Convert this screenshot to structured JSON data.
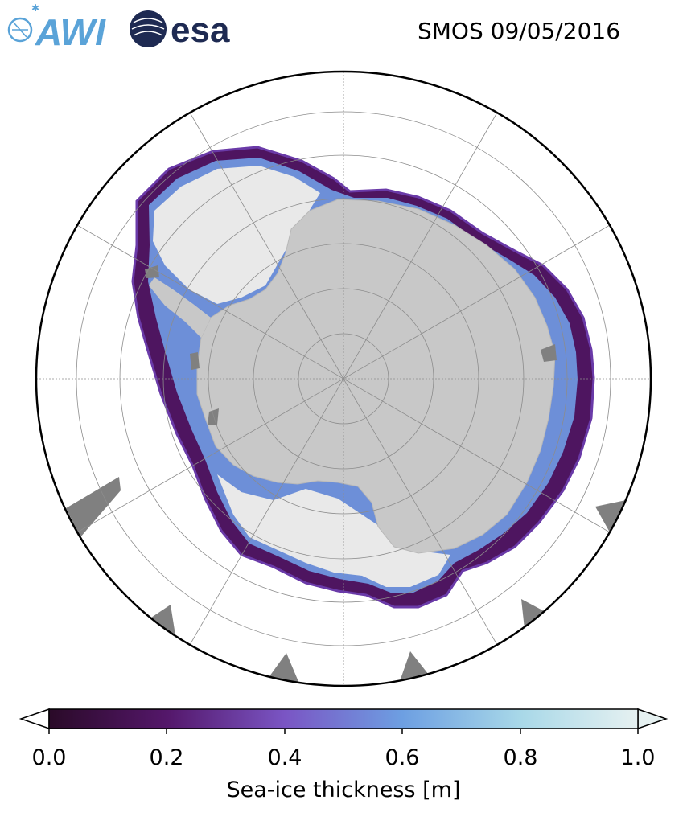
{
  "header": {
    "title": "SMOS 09/05/2016",
    "logos": [
      "AWI",
      "esa"
    ]
  },
  "colorbar": {
    "label": "Sea-ice thickness [m]",
    "ticks": [
      "0.0",
      "0.2",
      "0.4",
      "0.6",
      "0.8",
      "1.0"
    ],
    "range": [
      0.0,
      1.0
    ],
    "extend": "both",
    "colormap": [
      "#2a0a28",
      "#54176a",
      "#7a55c4",
      "#6d9fe2",
      "#a8d8e8",
      "#e6f1f1"
    ]
  },
  "map": {
    "projection": "south-polar-stereographic",
    "colors": {
      "land": "#c8c8c8",
      "ice_thick": "#e9e9e9",
      "no_data": "#808080",
      "ocean": "#ffffff",
      "grid": "#8c8c8c",
      "border": "#000000"
    }
  }
}
